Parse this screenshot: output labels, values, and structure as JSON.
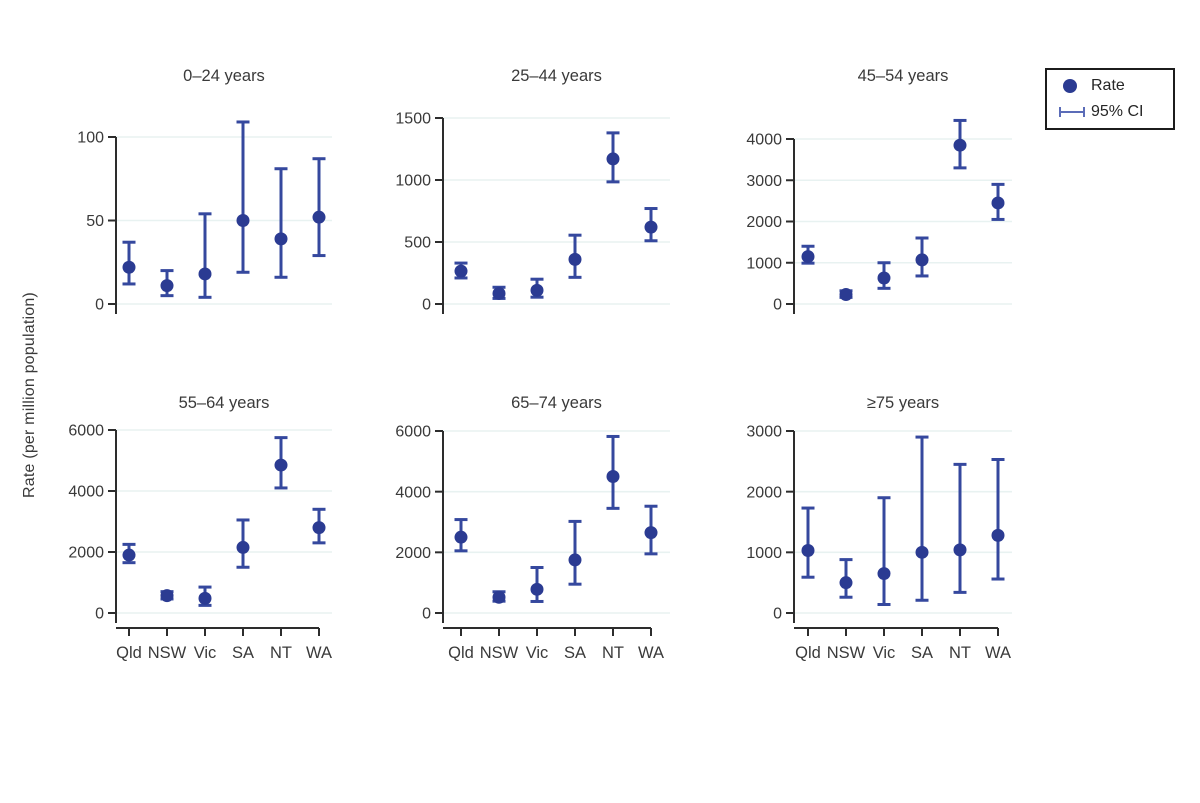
{
  "figure": {
    "ylabel": "Rate (per million population)",
    "legend": {
      "rate": "Rate",
      "ci": "95% CI"
    }
  },
  "chart_data": {
    "type": "scatter",
    "subtype": "point-estimates-with-95CI-error-bars",
    "categories": [
      "Qld",
      "NSW",
      "Vic",
      "SA",
      "NT",
      "WA"
    ],
    "ylabel": "Rate (per million population)",
    "legend_entries": [
      "Rate",
      "95% CI"
    ],
    "legend_position": "top-right",
    "grid": true,
    "colors": {
      "point": "#2b3b92",
      "whisker": "#35489e",
      "legend_ci": "#5b6cb8",
      "gridline": "#e8f2f1",
      "axis": "#2d2d2d",
      "text": "#3a3a3a"
    },
    "panels": [
      {
        "title": "0–24 years",
        "yticks": [
          0,
          50,
          100
        ],
        "rate": [
          22,
          11,
          18,
          50,
          39,
          52
        ],
        "ci_low": [
          12,
          5,
          4,
          19,
          16,
          29
        ],
        "ci_high": [
          37,
          20,
          54,
          109,
          81,
          87
        ]
      },
      {
        "title": "25–44 years",
        "yticks": [
          0,
          500,
          1000,
          1500
        ],
        "rate": [
          265,
          85,
          110,
          360,
          1170,
          620
        ],
        "ci_low": [
          210,
          45,
          55,
          215,
          985,
          510
        ],
        "ci_high": [
          330,
          135,
          200,
          555,
          1380,
          770
        ]
      },
      {
        "title": "45–54 years",
        "yticks": [
          0,
          1000,
          2000,
          3000,
          4000
        ],
        "rate": [
          1150,
          230,
          630,
          1070,
          3850,
          2450
        ],
        "ci_low": [
          990,
          160,
          380,
          680,
          3300,
          2050
        ],
        "ci_high": [
          1400,
          320,
          1000,
          1600,
          4450,
          2900
        ]
      },
      {
        "title": "55–64 years",
        "yticks": [
          0,
          2000,
          4000,
          6000
        ],
        "rate": [
          1900,
          570,
          480,
          2150,
          4850,
          2800
        ],
        "ci_low": [
          1650,
          460,
          250,
          1500,
          4100,
          2300
        ],
        "ci_high": [
          2250,
          700,
          850,
          3050,
          5750,
          3400
        ]
      },
      {
        "title": "65–74 years",
        "yticks": [
          0,
          2000,
          4000,
          6000
        ],
        "rate": [
          2500,
          520,
          780,
          1750,
          4500,
          2650
        ],
        "ci_low": [
          2050,
          390,
          380,
          950,
          3450,
          1950
        ],
        "ci_high": [
          3080,
          700,
          1500,
          3020,
          5820,
          3520
        ]
      },
      {
        "title": "≥75 years",
        "yticks": [
          0,
          1000,
          2000,
          3000
        ],
        "rate": [
          1030,
          500,
          650,
          1000,
          1040,
          1280
        ],
        "ci_low": [
          590,
          260,
          140,
          210,
          340,
          560
        ],
        "ci_high": [
          1730,
          880,
          1900,
          2900,
          2450,
          2530
        ]
      }
    ]
  }
}
